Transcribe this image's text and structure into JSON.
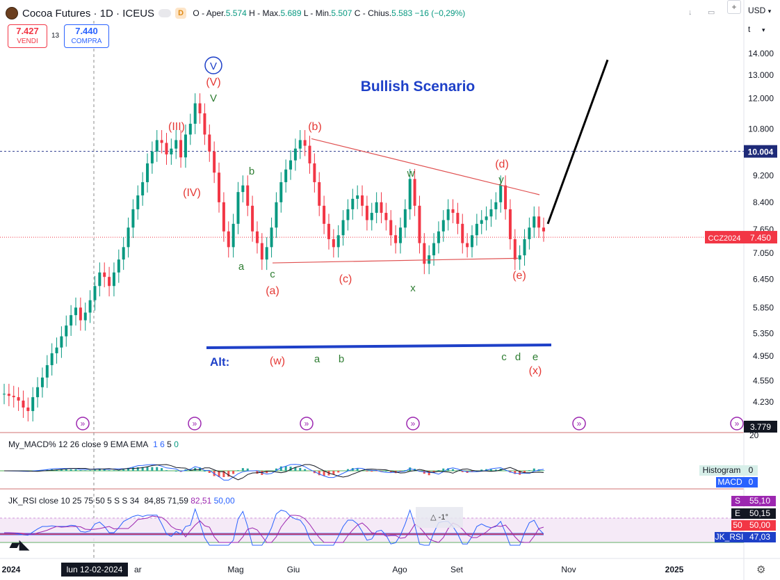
{
  "header": {
    "symbol": "Cocoa Futures · 1D · ICEUS",
    "badge": "D",
    "ohlc": {
      "o_label": "O - Aper.",
      "o": "5.574",
      "h_label": "H - Max.",
      "h": "5.689",
      "l_label": "L - Min.",
      "l": "5.507",
      "c_label": "C - Chius.",
      "c": "5.583",
      "change": "−16 (−0,29%)"
    }
  },
  "trade": {
    "sell_price": "7.427",
    "sell_label": "VENDI",
    "spread": "13",
    "buy_price": "7.440",
    "buy_label": "COMPRA"
  },
  "axis_controls": {
    "currency": "USD",
    "t_label": "t"
  },
  "colors": {
    "up": "#089981",
    "down": "#f23645",
    "accent": "#2962ff",
    "wave_red": "#e53935",
    "wave_green": "#2e7d32",
    "navy": "#1e40c8"
  },
  "chart_data": [
    {
      "type": "line",
      "title": "Bullish Scenario",
      "y_ticks": [
        "14.000",
        "13.000",
        "12.000",
        "10.800",
        "9.200",
        "8.400",
        "7.650",
        "7.050",
        "6.450",
        "5.850",
        "5.350",
        "4.950",
        "4.550",
        "4.230",
        "3.779"
      ],
      "x_ticks": [
        "2024",
        "Mag",
        "Giu",
        "Ago",
        "Set",
        "Nov",
        "2025"
      ],
      "crosshair_x_label": "lun 12-02-2024",
      "price_tags": {
        "horizontal_level": "10.004",
        "symbol_tag": "CCZ2024",
        "last_price": "7.450",
        "low_tag": "3.779"
      },
      "series": [
        {
          "values": [
            4.35,
            4.32,
            4.3,
            4.25,
            4.15,
            4.1,
            4.3,
            4.45,
            4.6,
            4.8,
            5.0,
            5.1,
            5.3,
            5.5,
            5.7,
            5.85,
            5.6,
            5.75,
            6.0,
            6.3,
            6.6,
            6.5,
            6.3,
            6.6,
            6.9,
            7.2,
            7.7,
            8.2,
            8.6,
            9.0,
            9.6,
            10.0,
            10.4,
            10.3,
            9.9,
            10.1,
            10.4,
            9.8,
            10.6,
            11.0,
            11.8,
            11.4,
            10.6,
            10.0,
            9.3,
            8.4,
            7.6,
            7.2,
            7.8,
            8.7,
            8.9,
            8.3,
            7.6,
            7.3,
            6.9,
            7.2,
            7.7,
            8.4,
            9.0,
            9.4,
            9.7,
            10.1,
            10.4,
            10.2,
            9.6,
            9.0,
            8.3,
            7.8,
            7.4,
            7.2,
            7.5,
            7.9,
            8.2,
            8.5,
            8.6,
            8.3,
            7.9,
            8.1,
            8.4,
            8.1,
            7.9,
            7.5,
            7.3,
            7.7,
            8.2,
            9.1,
            8.3,
            7.3,
            6.8,
            7.0,
            7.3,
            7.6,
            7.9,
            8.2,
            8.1,
            7.8,
            7.3,
            7.2,
            7.5,
            7.8,
            7.9,
            8.0,
            8.2,
            8.4,
            8.9,
            8.2,
            7.4,
            6.9,
            7.0,
            7.4,
            7.7,
            8.0,
            7.7,
            7.6
          ]
        }
      ],
      "wave_labels": {
        "circle_v": "V",
        "big_v": "(V)",
        "green_v": "V",
        "iii": "(III)",
        "iv": "(IV)",
        "a1": "a",
        "b1": "b",
        "c1": "c",
        "a_paren": "(a)",
        "b_paren": "(b)",
        "c_paren": "(c)",
        "w": "w",
        "x": "x",
        "y": "y",
        "d_paren": "(d)",
        "e_paren": "(e)"
      },
      "alt": {
        "label": "Alt:",
        "w": "(w)",
        "a": "a",
        "b": "b",
        "c": "c",
        "d": "d",
        "e": "e",
        "x": "(x)"
      }
    },
    {
      "type": "line",
      "title": "My_MACD% 12 26 close 9 EMA EMA",
      "params": [
        "1",
        "6",
        "5",
        "0"
      ],
      "y_ticks": [
        "20"
      ],
      "tags": {
        "histogram_label": "Histogram",
        "histogram_value": "0",
        "macd_label": "MACD",
        "macd_value": "0"
      }
    },
    {
      "type": "line",
      "title": "JK_RSI close 10 25 75 50 5 S S 34",
      "params": [
        "84,85",
        "71,59",
        "82,51",
        "50,00"
      ],
      "tags": {
        "s_label": "S",
        "s_value": "55,10",
        "e_label": "E",
        "e_value": "50,15",
        "l50_label": "50",
        "l50_value": "50,00",
        "rsi_label": "JK_RSI",
        "rsi_value": "47,03"
      },
      "overlay_badge": "-1°"
    }
  ]
}
